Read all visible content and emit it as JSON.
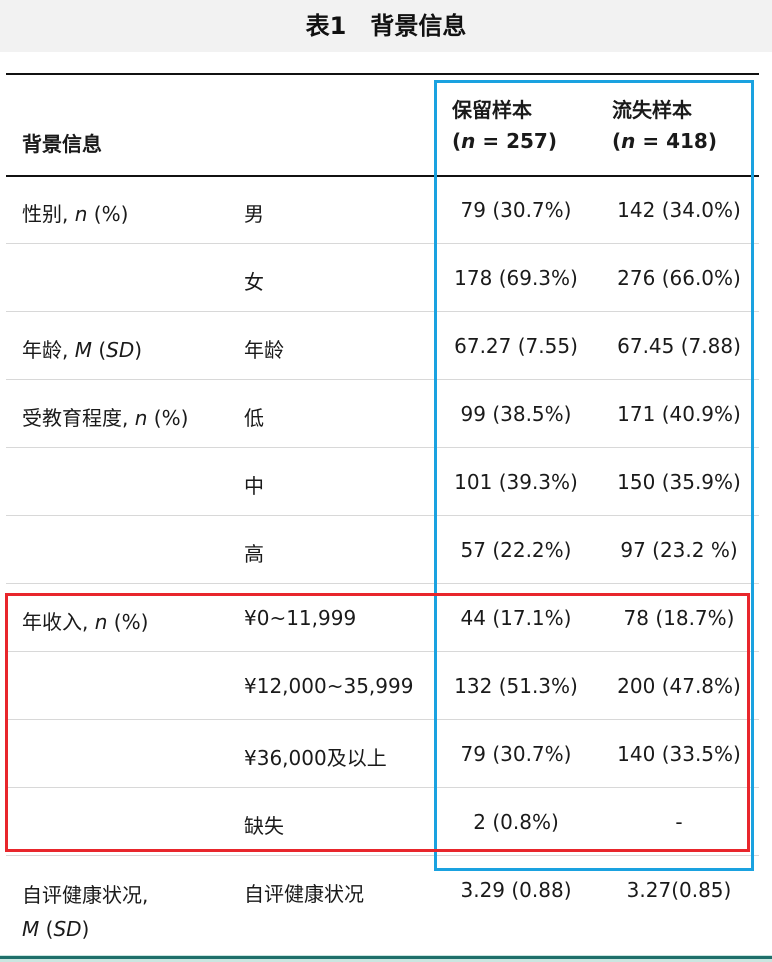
{
  "title": "表1　背景信息",
  "header": {
    "col1": "背景信息",
    "retained_label": "保留样本",
    "retained_n": "(n = 257)",
    "lost_label": "流失样本",
    "lost_n": "(n = 418)"
  },
  "rows": [
    {
      "category": "性别, n (%)",
      "sub": "男",
      "retained": "79 (30.7%)",
      "lost": "142 (34.0%)"
    },
    {
      "category": "",
      "sub": "女",
      "retained": "178 (69.3%)",
      "lost": "276 (66.0%)"
    },
    {
      "category": "年龄, M (SD)",
      "sub": "年龄",
      "retained": "67.27 (7.55)",
      "lost": "67.45 (7.88)"
    },
    {
      "category": "受教育程度, n (%)",
      "sub": "低",
      "retained": "99 (38.5%)",
      "lost": "171 (40.9%)"
    },
    {
      "category": "",
      "sub": "中",
      "retained": "101 (39.3%)",
      "lost": "150 (35.9%)"
    },
    {
      "category": "",
      "sub": "高",
      "retained": "57 (22.2%)",
      "lost": "97 (23.2 %)"
    },
    {
      "category": "年收入, n (%)",
      "sub": "¥0~11,999",
      "retained": "44 (17.1%)",
      "lost": "78 (18.7%)"
    },
    {
      "category": "",
      "sub": "¥12,000~35,999",
      "retained": "132 (51.3%)",
      "lost": "200 (47.8%)"
    },
    {
      "category": "",
      "sub": "¥36,000及以上",
      "retained": "79 (30.7%)",
      "lost": "140 (33.5%)"
    },
    {
      "category": "",
      "sub": "缺失",
      "retained": "2 (0.8%)",
      "lost": "-"
    },
    {
      "category": "自评健康状况, M (SD)",
      "sub": "自评健康状况",
      "retained": "3.29 (0.88)",
      "lost": "3.27(0.85)"
    }
  ],
  "highlight_colors": {
    "retained_lost_columns": "#1aa2e0",
    "income_rows": "#e8262c"
  }
}
